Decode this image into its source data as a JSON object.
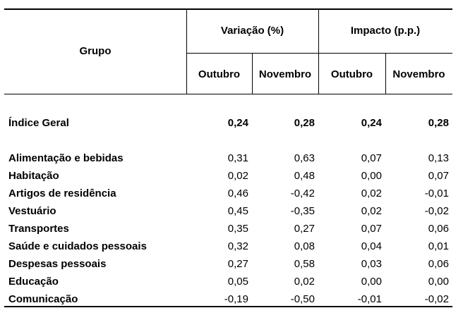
{
  "header": {
    "group_label": "Grupo",
    "variation_label": "Variação (%)",
    "impact_label": "Impacto (p.p.)",
    "sub_labels": [
      "Outubro",
      "Novembro",
      "Outubro",
      "Novembro"
    ]
  },
  "total_row": {
    "name": "Índice Geral",
    "values": [
      "0,24",
      "0,28",
      "0,24",
      "0,28"
    ]
  },
  "rows": [
    {
      "name": "Alimentação e bebidas",
      "values": [
        "0,31",
        "0,63",
        "0,07",
        "0,13"
      ]
    },
    {
      "name": "Habitação",
      "values": [
        "0,02",
        "0,48",
        "0,00",
        "0,07"
      ]
    },
    {
      "name": "Artigos de residência",
      "values": [
        "0,46",
        "-0,42",
        "0,02",
        "-0,01"
      ]
    },
    {
      "name": "Vestuário",
      "values": [
        "0,45",
        "-0,35",
        "0,02",
        "-0,02"
      ]
    },
    {
      "name": "Transportes",
      "values": [
        "0,35",
        "0,27",
        "0,07",
        "0,06"
      ]
    },
    {
      "name": "Saúde e cuidados pessoais",
      "values": [
        "0,32",
        "0,08",
        "0,04",
        "0,01"
      ]
    },
    {
      "name": "Despesas pessoais",
      "values": [
        "0,27",
        "0,58",
        "0,03",
        "0,06"
      ]
    },
    {
      "name": "Educação",
      "values": [
        "0,05",
        "0,02",
        "0,00",
        "0,00"
      ]
    },
    {
      "name": "Comunicação",
      "values": [
        "-0,19",
        "-0,50",
        "-0,01",
        "-0,02"
      ]
    }
  ]
}
